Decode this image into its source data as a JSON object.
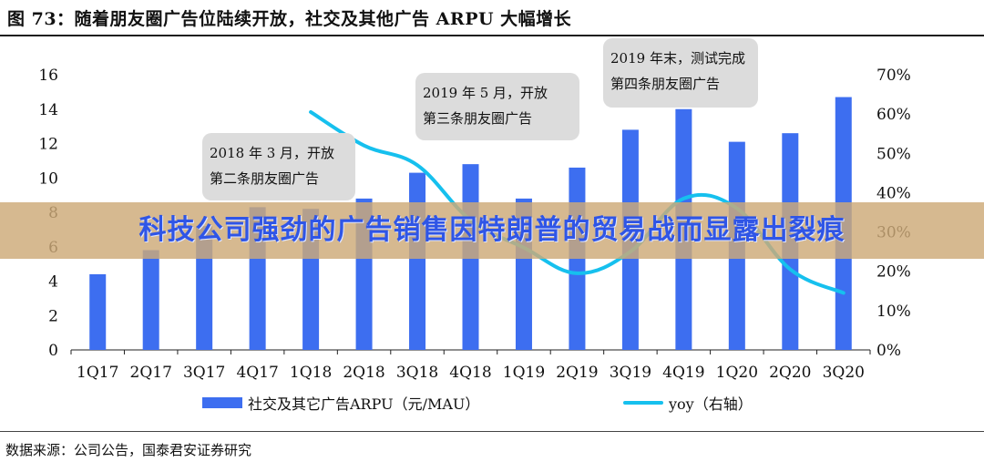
{
  "title": "图 73：随着朋友圈广告位陆续开放，社交及其他广告 ARPU 大幅增长",
  "source": "数据来源：公司公告，国泰君安证券研究",
  "banner": "科技公司强劲的广告销售因特朗普的贸易战而显露出裂痕",
  "legend": {
    "bar": "社交及其它广告ARPU（元/MAU）",
    "line": "yoy（右轴）"
  },
  "colors": {
    "bar": "#3d6ef0",
    "line": "#16c0ee",
    "callout": "#dcdcdc"
  },
  "chart_data": {
    "type": "bar",
    "categories": [
      "1Q17",
      "2Q17",
      "3Q17",
      "4Q17",
      "1Q18",
      "2Q18",
      "3Q18",
      "4Q18",
      "1Q19",
      "2Q19",
      "3Q19",
      "4Q19",
      "1Q20",
      "2Q20",
      "3Q20"
    ],
    "y_left": {
      "min": 0,
      "max": 16,
      "ticks": [
        "0",
        "2",
        "4",
        "6",
        "8",
        "10",
        "12",
        "14",
        "16"
      ]
    },
    "y_right": {
      "min": 0,
      "max": 70,
      "ticks": [
        "0%",
        "10%",
        "20%",
        "30%",
        "40%",
        "50%",
        "60%",
        "70%"
      ]
    },
    "series": [
      {
        "name": "社交及其它广告ARPU（元/MAU）",
        "type": "bar",
        "axis": "left",
        "values": [
          4.4,
          5.8,
          7.2,
          8.3,
          8.2,
          8.8,
          10.3,
          10.8,
          8.8,
          10.6,
          12.8,
          14.0,
          12.1,
          12.6,
          14.7
        ]
      },
      {
        "name": "yoy（右轴）",
        "type": "line",
        "axis": "right",
        "values": [
          null,
          null,
          null,
          null,
          60.5,
          52,
          47,
          33,
          26,
          19.5,
          25,
          38.5,
          36,
          20.5,
          14.5
        ]
      }
    ],
    "annotations": [
      {
        "lines": [
          "2018 年 3 月，开放",
          "第二条朋友圈广告"
        ],
        "category": "1Q18"
      },
      {
        "lines": [
          "2019 年 5 月，开放",
          "第三条朋友圈广告"
        ],
        "category": "2Q19"
      },
      {
        "lines": [
          "2019 年末，测试完成",
          "第四条朋友圈广告"
        ],
        "category": "4Q19"
      }
    ],
    "grid": false,
    "legend_position": "bottom"
  }
}
